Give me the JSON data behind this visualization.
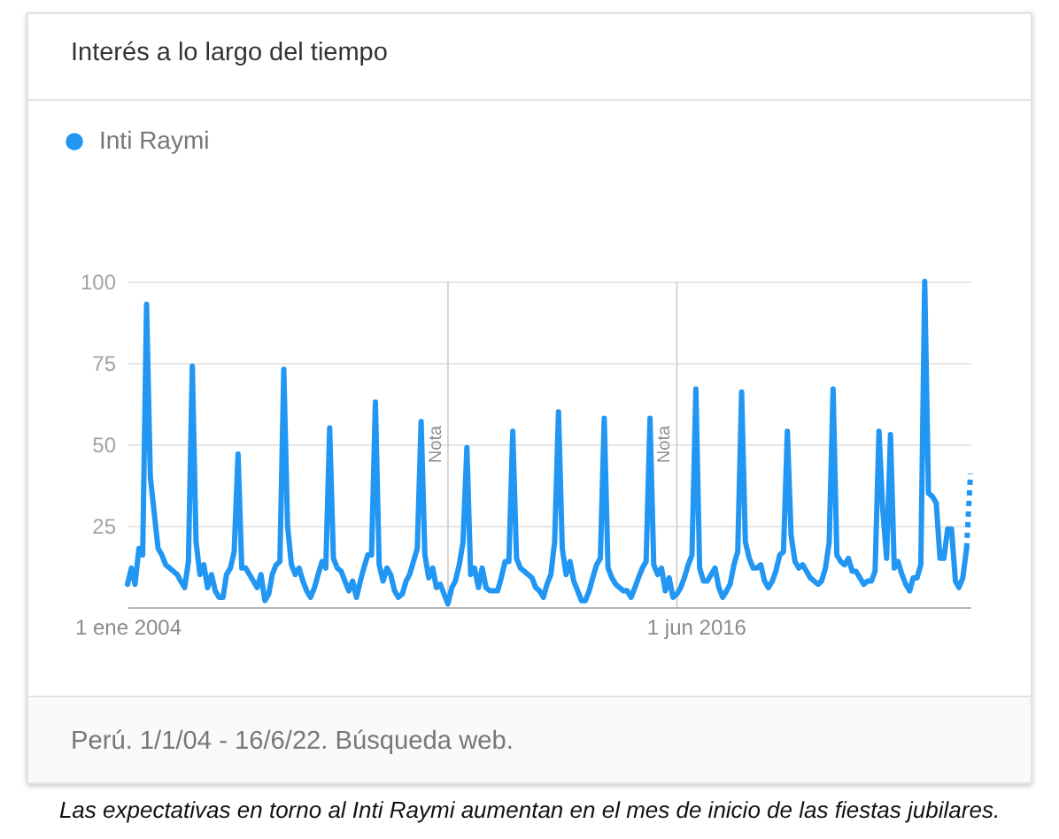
{
  "chart_data": {
    "type": "line",
    "title": "Interés a lo largo del tiempo",
    "annotations": [
      "Perú. 1/1/04 - 16/6/22. Búsqueda web.",
      "Las expectativas en torno al Inti Raymi aumentan en el mes de inicio de las fiestas jubilares."
    ],
    "x": [
      "2004-01",
      "2004-02",
      "2004-03",
      "2004-04",
      "2004-05",
      "2004-06",
      "2004-07",
      "2004-08",
      "2004-09",
      "2004-10",
      "2004-11",
      "2004-12",
      "2005-01",
      "2005-02",
      "2005-03",
      "2005-04",
      "2005-05",
      "2005-06",
      "2005-07",
      "2005-08",
      "2005-09",
      "2005-10",
      "2005-11",
      "2005-12",
      "2006-01",
      "2006-02",
      "2006-03",
      "2006-04",
      "2006-05",
      "2006-06",
      "2006-07",
      "2006-08",
      "2006-09",
      "2006-10",
      "2006-11",
      "2006-12",
      "2007-01",
      "2007-02",
      "2007-03",
      "2007-04",
      "2007-05",
      "2007-06",
      "2007-07",
      "2007-08",
      "2007-09",
      "2007-10",
      "2007-11",
      "2007-12",
      "2008-01",
      "2008-02",
      "2008-03",
      "2008-04",
      "2008-05",
      "2008-06",
      "2008-07",
      "2008-08",
      "2008-09",
      "2008-10",
      "2008-11",
      "2008-12",
      "2009-01",
      "2009-02",
      "2009-03",
      "2009-04",
      "2009-05",
      "2009-06",
      "2009-07",
      "2009-08",
      "2009-09",
      "2009-10",
      "2009-11",
      "2009-12",
      "2010-01",
      "2010-02",
      "2010-03",
      "2010-04",
      "2010-05",
      "2010-06",
      "2010-07",
      "2010-08",
      "2010-09",
      "2010-10",
      "2010-11",
      "2010-12",
      "2011-01",
      "2011-02",
      "2011-03",
      "2011-04",
      "2011-05",
      "2011-06",
      "2011-07",
      "2011-08",
      "2011-09",
      "2011-10",
      "2011-11",
      "2011-12",
      "2012-01",
      "2012-02",
      "2012-03",
      "2012-04",
      "2012-05",
      "2012-06",
      "2012-07",
      "2012-08",
      "2012-09",
      "2012-10",
      "2012-11",
      "2012-12",
      "2013-01",
      "2013-02",
      "2013-03",
      "2013-04",
      "2013-05",
      "2013-06",
      "2013-07",
      "2013-08",
      "2013-09",
      "2013-10",
      "2013-11",
      "2013-12",
      "2014-01",
      "2014-02",
      "2014-03",
      "2014-04",
      "2014-05",
      "2014-06",
      "2014-07",
      "2014-08",
      "2014-09",
      "2014-10",
      "2014-11",
      "2014-12",
      "2015-01",
      "2015-02",
      "2015-03",
      "2015-04",
      "2015-05",
      "2015-06",
      "2015-07",
      "2015-08",
      "2015-09",
      "2015-10",
      "2015-11",
      "2015-12",
      "2016-01",
      "2016-02",
      "2016-03",
      "2016-04",
      "2016-05",
      "2016-06",
      "2016-07",
      "2016-08",
      "2016-09",
      "2016-10",
      "2016-11",
      "2016-12",
      "2017-01",
      "2017-02",
      "2017-03",
      "2017-04",
      "2017-05",
      "2017-06",
      "2017-07",
      "2017-08",
      "2017-09",
      "2017-10",
      "2017-11",
      "2017-12",
      "2018-01",
      "2018-02",
      "2018-03",
      "2018-04",
      "2018-05",
      "2018-06",
      "2018-07",
      "2018-08",
      "2018-09",
      "2018-10",
      "2018-11",
      "2018-12",
      "2019-01",
      "2019-02",
      "2019-03",
      "2019-04",
      "2019-05",
      "2019-06",
      "2019-07",
      "2019-08",
      "2019-09",
      "2019-10",
      "2019-11",
      "2019-12",
      "2020-01",
      "2020-02",
      "2020-03",
      "2020-04",
      "2020-05",
      "2020-06",
      "2020-07",
      "2020-08",
      "2020-09",
      "2020-10",
      "2020-11",
      "2020-12",
      "2021-01",
      "2021-02",
      "2021-03",
      "2021-04",
      "2021-05",
      "2021-06",
      "2021-07",
      "2021-08",
      "2021-09",
      "2021-10",
      "2021-11",
      "2021-12",
      "2022-01",
      "2022-02",
      "2022-03",
      "2022-04",
      "2022-05"
    ],
    "series": [
      {
        "name": "Inti Raymi",
        "color": "#2196f3",
        "values": [
          7,
          12,
          7,
          18,
          16,
          93,
          40,
          29,
          18,
          16,
          13,
          12,
          11,
          10,
          8,
          6,
          14,
          74,
          20,
          10,
          13,
          6,
          10,
          5,
          3,
          3,
          10,
          12,
          17,
          47,
          12,
          12,
          10,
          8,
          6,
          10,
          2,
          4,
          10,
          13,
          14,
          73,
          25,
          13,
          10,
          12,
          8,
          5,
          3,
          6,
          10,
          14,
          12,
          55,
          15,
          12,
          11,
          8,
          5,
          8,
          3,
          8,
          12,
          16,
          16,
          63,
          13,
          8,
          12,
          10,
          5,
          3,
          4,
          8,
          10,
          14,
          18,
          57,
          16,
          9,
          12,
          6,
          7,
          4,
          1,
          6,
          8,
          13,
          20,
          49,
          10,
          12,
          6,
          12,
          6,
          5,
          5,
          5,
          9,
          14,
          14,
          54,
          15,
          12,
          11,
          10,
          9,
          6,
          5,
          3,
          7,
          10,
          20,
          60,
          18,
          10,
          14,
          8,
          5,
          2,
          2,
          5,
          9,
          13,
          15,
          58,
          12,
          9,
          7,
          6,
          5,
          5,
          3,
          6,
          9,
          12,
          14,
          58,
          13,
          10,
          12,
          5,
          9,
          3,
          4,
          6,
          9,
          13,
          16,
          67,
          12,
          8,
          8,
          10,
          12,
          6,
          3,
          5,
          7,
          13,
          17,
          66,
          20,
          15,
          12,
          12,
          13,
          8,
          6,
          8,
          11,
          16,
          17,
          54,
          22,
          14,
          12,
          13,
          11,
          9,
          8,
          7,
          8,
          12,
          20,
          67,
          16,
          14,
          13,
          15,
          11,
          11,
          9,
          7,
          8,
          8,
          11,
          54,
          30,
          15,
          53,
          12,
          14,
          10,
          7,
          5,
          9,
          9,
          13,
          100,
          35,
          34,
          32,
          15,
          15,
          24,
          24,
          8,
          6,
          9,
          18
        ]
      },
      {
        "color": "#2196f3",
        "x": [
          "2022-05",
          "2022-06"
        ],
        "values": [
          18,
          41
        ],
        "line_style": "dotted"
      }
    ],
    "xlim": [
      "2004-01",
      "2022-06"
    ],
    "ylim": [
      0,
      100
    ],
    "xticks": [
      {
        "value": "2004-01-01",
        "label": "1 ene 2004"
      },
      {
        "value": "2016-06-01",
        "label": "1 jun 2016"
      }
    ],
    "yticks": [
      25,
      50,
      75,
      100
    ],
    "grid": "y",
    "legend": "top left",
    "line_style": "solid",
    "ref_lines": [
      {
        "axis": "x",
        "value": "2011-01",
        "label": "Nota"
      },
      {
        "axis": "x",
        "value": "2016-01",
        "label": "Nota"
      }
    ]
  }
}
